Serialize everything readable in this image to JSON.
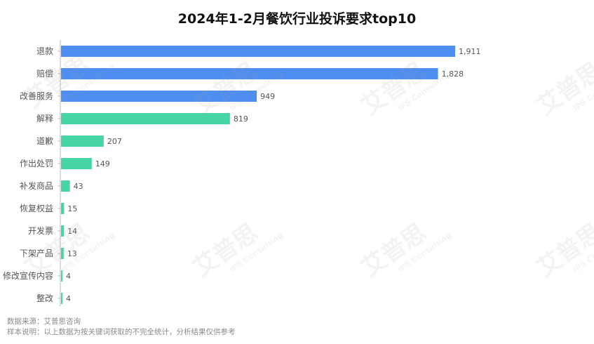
{
  "chart_data": {
    "type": "bar",
    "orientation": "horizontal",
    "title": "2024年1-2月餐饮行业投诉要求top10",
    "categories": [
      "退款",
      "赔偿",
      "改善服务",
      "解释",
      "道歉",
      "作出处罚",
      "补发商品",
      "恢复权益",
      "开发票",
      "下架产品",
      "修改宣传内容",
      "整改"
    ],
    "values": [
      1911,
      1828,
      949,
      819,
      207,
      149,
      43,
      15,
      14,
      13,
      4,
      4
    ],
    "value_labels": [
      "1,911",
      "1,828",
      "949",
      "819",
      "207",
      "149",
      "43",
      "15",
      "14",
      "13",
      "4",
      "4"
    ],
    "bar_colors": [
      "#4e8ef2",
      "#4e8ef2",
      "#4e8ef2",
      "#46d6a6",
      "#46d6a6",
      "#46d6a6",
      "#46d6a6",
      "#46d6a6",
      "#46d6a6",
      "#46d6a6",
      "#46d6a6",
      "#46d6a6"
    ],
    "xlim": [
      0,
      1911
    ],
    "grid": false,
    "legend": "none"
  },
  "footer": {
    "source": "数据来源：艾普思咨询",
    "note": "样本说明：以上数据为按关键词获取的不完全统计，分析结果仅供参考"
  },
  "watermark": {
    "text": "艾普思",
    "subtext": "iPS Consulting"
  }
}
